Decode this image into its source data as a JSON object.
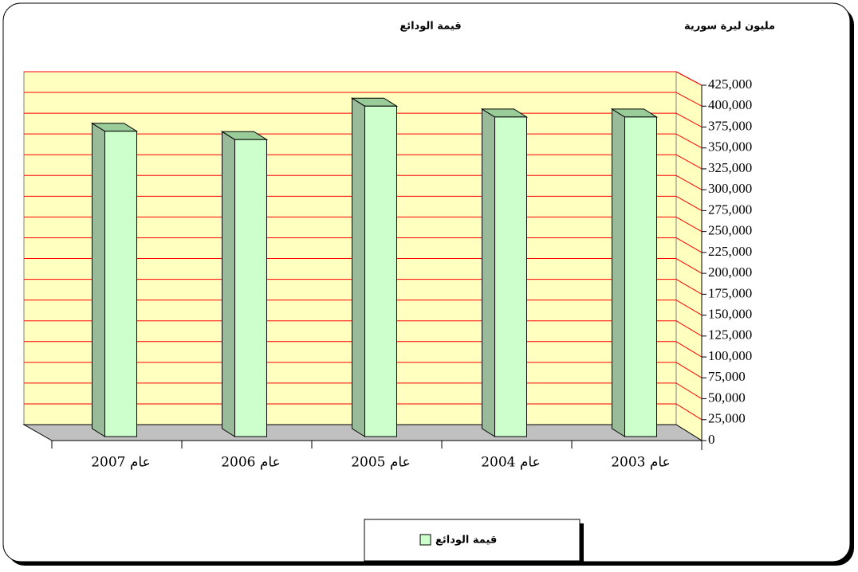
{
  "chart_data": {
    "type": "bar3d",
    "title": "قيمة الودائع",
    "y_axis_label": "مليون ليرة سورية",
    "categories": [
      "عام 2007",
      "عام 2006",
      "عام 2005",
      "عام 2004",
      "عام 2003"
    ],
    "series": [
      {
        "name": "قيمة الودائع",
        "color": "#ccffcc",
        "values": [
          370000,
          360000,
          400000,
          387000,
          387000
        ]
      }
    ],
    "ylim": [
      0,
      425000
    ],
    "yticks": [
      0,
      {
        "value": 25000,
        "label": "25,000"
      },
      {
        "value": 50000,
        "label": "50,000"
      },
      {
        "value": 75000,
        "label": "75,000"
      },
      {
        "value": 100000,
        "label": "100,000"
      },
      {
        "value": 125000,
        "label": "125,000"
      },
      {
        "value": 150000,
        "label": "150,000"
      },
      {
        "value": 175000,
        "label": "175,000"
      },
      {
        "value": 200000,
        "label": "200,000"
      },
      {
        "value": 225000,
        "label": "225,000"
      },
      {
        "value": 250000,
        "label": "250,000"
      },
      {
        "value": 275000,
        "label": "275,000"
      },
      {
        "value": 300000,
        "label": "300,000"
      },
      {
        "value": 325000,
        "label": "325,000"
      },
      {
        "value": 350000,
        "label": "350,000"
      },
      {
        "value": 375000,
        "label": "375,000"
      },
      {
        "value": 400000,
        "label": "400,000"
      },
      {
        "value": 425000,
        "label": "425,000"
      }
    ],
    "grid": true,
    "grid_color": "#ff0000",
    "wall_color": "#ffffc0",
    "floor_color": "#c0c0c0",
    "legend": "bottom"
  }
}
